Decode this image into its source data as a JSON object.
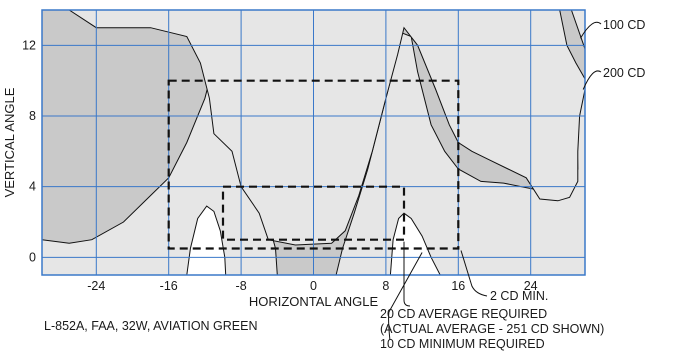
{
  "chart_data": {
    "type": "isocandela-contour",
    "xlabel": "HORIZONTAL ANGLE",
    "ylabel": "VERTICAL ANGLE",
    "xlim": [
      -30,
      30
    ],
    "ylim": [
      -1,
      14
    ],
    "x_ticks": [
      -24,
      -16,
      -8,
      0,
      8,
      16,
      24
    ],
    "y_ticks": [
      0,
      4,
      8,
      12
    ],
    "grid": true,
    "caption": "L-852A, FAA, 32W, AVIATION GREEN",
    "colors": {
      "background": "#ffffff",
      "region_light": "#e6e6e6",
      "region_mid": "#c9c9c9",
      "grid": "#3a78c9",
      "lines": "#111111"
    },
    "contours": [
      {
        "name": "100 CD",
        "label": "100 CD",
        "fill": "mid",
        "points": [
          [
            -30,
            14
          ],
          [
            -30,
            1
          ],
          [
            -27,
            0.8
          ],
          [
            -24.5,
            1
          ],
          [
            -21,
            2
          ],
          [
            -18,
            3.5
          ],
          [
            -16,
            4.5
          ],
          [
            -14,
            6.5
          ],
          [
            -12,
            9
          ],
          [
            -11,
            11
          ],
          [
            -10,
            12.7
          ],
          [
            -9.4,
            12.5
          ],
          [
            -8.8,
            11
          ],
          [
            -8,
            8
          ],
          [
            -7,
            6
          ],
          [
            -6,
            4.5
          ],
          [
            -5,
            2
          ],
          [
            -4.2,
            0.5
          ],
          [
            -4,
            -1
          ],
          [
            2.5,
            -1
          ],
          [
            3.2,
            0.5
          ],
          [
            4.5,
            2.5
          ],
          [
            6,
            5
          ],
          [
            7.5,
            8
          ],
          [
            9,
            11
          ],
          [
            9.8,
            12.7
          ],
          [
            10.8,
            12.5
          ],
          [
            11.5,
            10.5
          ],
          [
            13,
            7.5
          ],
          [
            14.5,
            6
          ],
          [
            16,
            5
          ],
          [
            18.5,
            4.3
          ],
          [
            21,
            4.2
          ],
          [
            23,
            4
          ],
          [
            25,
            3.8
          ],
          [
            26.5,
            3.5
          ],
          [
            28.5,
            3.9
          ],
          [
            29.2,
            5
          ],
          [
            29.1,
            7
          ],
          [
            29.6,
            9.3
          ],
          [
            30,
            10
          ],
          [
            30,
            11.8
          ],
          [
            28.5,
            14
          ]
        ]
      },
      {
        "name": "200 CD",
        "label": "200 CD",
        "fill": "light",
        "points": [
          [
            -27,
            14
          ],
          [
            -24,
            13
          ],
          [
            -18,
            13
          ],
          [
            -14,
            12.5
          ],
          [
            -12.5,
            11
          ],
          [
            -11.5,
            9
          ],
          [
            -11,
            7
          ],
          [
            -9,
            6
          ],
          [
            -8,
            4
          ],
          [
            -6,
            2.5
          ],
          [
            -5,
            1
          ],
          [
            -2,
            0.7
          ],
          [
            2,
            0.8
          ],
          [
            3.5,
            1.5
          ],
          [
            5,
            3.5
          ],
          [
            6.5,
            6
          ],
          [
            8,
            9
          ],
          [
            9.3,
            11.5
          ],
          [
            10,
            13
          ],
          [
            11.5,
            12
          ],
          [
            13.5,
            9.5
          ],
          [
            15,
            7.5
          ],
          [
            16,
            6.5
          ],
          [
            17.5,
            6
          ],
          [
            19.5,
            5.5
          ],
          [
            21.5,
            5
          ],
          [
            23.5,
            4.5
          ],
          [
            25,
            3.3
          ],
          [
            27,
            3.2
          ],
          [
            28.3,
            3.4
          ],
          [
            29.2,
            4.3
          ],
          [
            29.2,
            6
          ],
          [
            29.4,
            8
          ],
          [
            30,
            9.5
          ],
          [
            30,
            10.1
          ],
          [
            29,
            11
          ],
          [
            28,
            12
          ],
          [
            27.2,
            14
          ]
        ]
      },
      {
        "name": "2 CD MIN.",
        "label": "2 CD MIN.",
        "fill": "white",
        "points": [
          [
            -14,
            -1
          ],
          [
            -13.6,
            0.5
          ],
          [
            -12.8,
            2.2
          ],
          [
            -11.8,
            2.9
          ],
          [
            -11,
            2.6
          ],
          [
            -10.3,
            1.5
          ],
          [
            -9.8,
            0
          ],
          [
            -9.7,
            -1
          ]
        ]
      },
      {
        "name": "",
        "fill": "white",
        "points": [
          [
            8.5,
            -1
          ],
          [
            8.8,
            1
          ],
          [
            9.4,
            2.2
          ],
          [
            10,
            2.5
          ],
          [
            10.8,
            2.2
          ],
          [
            12,
            1.2
          ],
          [
            13,
            0
          ],
          [
            14,
            -1
          ]
        ]
      }
    ],
    "rectangles": [
      {
        "name": "20 CD AVERAGE REQUIRED",
        "x": [
          -16,
          16
        ],
        "y": [
          0.5,
          10
        ]
      },
      {
        "name": "10 CD MINIMUM REQUIRED",
        "x": [
          -10,
          10
        ],
        "y": [
          1,
          4
        ]
      }
    ],
    "annotations": [
      {
        "text": "100 CD"
      },
      {
        "text": "200 CD"
      },
      {
        "text": "2 CD MIN."
      },
      {
        "text": "20 CD AVERAGE REQUIRED"
      },
      {
        "text": "(ACTUAL AVERAGE - 251 CD SHOWN)"
      },
      {
        "text": "10 CD MINIMUM REQUIRED"
      }
    ]
  }
}
